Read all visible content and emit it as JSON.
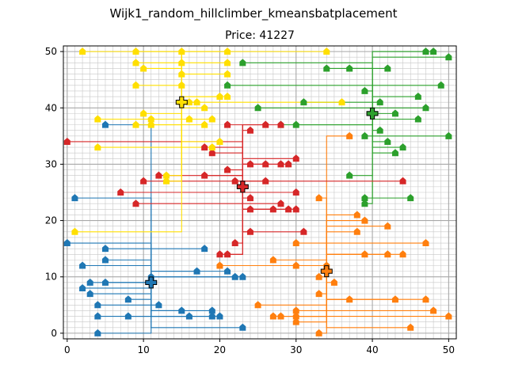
{
  "chart_data": {
    "type": "scatter",
    "suptitle": "Wijk1_random_hillclimber_kmeansbatplacement",
    "title": "Price: 41227",
    "xlabel": "",
    "ylabel": "",
    "xlim": [
      -0.5,
      51
    ],
    "ylim": [
      -1,
      51
    ],
    "xticks": [
      0,
      10,
      20,
      30,
      40,
      50
    ],
    "yticks": [
      0,
      10,
      20,
      30,
      40,
      50
    ],
    "grid": "major and minor, every unit",
    "colors": {
      "blue": "#1f77b4",
      "orange": "#ff7f0e",
      "green": "#2ca02c",
      "red": "#d62728",
      "yellow": "#ffdf00",
      "minor_grid": "#c8c8c8",
      "major_grid": "#a8a8a8"
    },
    "batteries": [
      {
        "x": 11,
        "y": 9,
        "color": "#1f77b4"
      },
      {
        "x": 34,
        "y": 11,
        "color": "#ff7f0e"
      },
      {
        "x": 40,
        "y": 39,
        "color": "#2ca02c"
      },
      {
        "x": 23,
        "y": 26,
        "color": "#d62728"
      },
      {
        "x": 15,
        "y": 41,
        "color": "#ffdf00"
      }
    ],
    "series": [
      {
        "color": "#1f77b4",
        "battery": [
          11,
          9
        ],
        "houses": [
          [
            0,
            16
          ],
          [
            1,
            24
          ],
          [
            2,
            12
          ],
          [
            2,
            8
          ],
          [
            3,
            9
          ],
          [
            3,
            7
          ],
          [
            4,
            5
          ],
          [
            4,
            3
          ],
          [
            4,
            0
          ],
          [
            5,
            15
          ],
          [
            5,
            13
          ],
          [
            5,
            9
          ],
          [
            5,
            37
          ],
          [
            8,
            6
          ],
          [
            8,
            3
          ],
          [
            11,
            10
          ],
          [
            12,
            5
          ],
          [
            15,
            4
          ],
          [
            16,
            3
          ],
          [
            17,
            11
          ],
          [
            18,
            15
          ],
          [
            19,
            4
          ],
          [
            19,
            3
          ],
          [
            20,
            3
          ],
          [
            21,
            11
          ],
          [
            22,
            10
          ],
          [
            23,
            10
          ],
          [
            23,
            1
          ]
        ]
      },
      {
        "color": "#ff7f0e",
        "battery": [
          34,
          11
        ],
        "houses": [
          [
            20,
            12
          ],
          [
            25,
            5
          ],
          [
            27,
            13
          ],
          [
            27,
            3
          ],
          [
            28,
            3
          ],
          [
            30,
            16
          ],
          [
            30,
            12
          ],
          [
            30,
            4
          ],
          [
            30,
            2
          ],
          [
            30,
            3
          ],
          [
            33,
            24
          ],
          [
            33,
            10
          ],
          [
            33,
            7
          ],
          [
            33,
            0
          ],
          [
            34,
            12
          ],
          [
            35,
            9
          ],
          [
            37,
            35
          ],
          [
            37,
            6
          ],
          [
            38,
            21
          ],
          [
            38,
            18
          ],
          [
            39,
            14
          ],
          [
            39,
            20
          ],
          [
            42,
            19
          ],
          [
            42,
            14
          ],
          [
            43,
            6
          ],
          [
            44,
            14
          ],
          [
            45,
            1
          ],
          [
            47,
            16
          ],
          [
            47,
            6
          ],
          [
            48,
            4
          ],
          [
            50,
            3
          ]
        ]
      },
      {
        "color": "#2ca02c",
        "battery": [
          40,
          39
        ],
        "houses": [
          [
            21,
            44
          ],
          [
            23,
            48
          ],
          [
            25,
            40
          ],
          [
            28,
            37
          ],
          [
            30,
            37
          ],
          [
            31,
            41
          ],
          [
            34,
            47
          ],
          [
            37,
            47
          ],
          [
            37,
            28
          ],
          [
            39,
            24
          ],
          [
            39,
            23
          ],
          [
            39,
            43
          ],
          [
            39,
            35
          ],
          [
            41,
            36
          ],
          [
            41,
            41
          ],
          [
            42,
            34
          ],
          [
            42,
            47
          ],
          [
            43,
            39
          ],
          [
            43,
            32
          ],
          [
            44,
            33
          ],
          [
            45,
            24
          ],
          [
            46,
            38
          ],
          [
            46,
            42
          ],
          [
            47,
            40
          ],
          [
            47,
            50
          ],
          [
            48,
            50
          ],
          [
            49,
            44
          ],
          [
            50,
            49
          ],
          [
            50,
            35
          ]
        ]
      },
      {
        "color": "#d62728",
        "battery": [
          23,
          26
        ],
        "houses": [
          [
            0,
            34
          ],
          [
            7,
            25
          ],
          [
            9,
            23
          ],
          [
            10,
            27
          ],
          [
            12,
            28
          ],
          [
            18,
            33
          ],
          [
            18,
            28
          ],
          [
            19,
            32
          ],
          [
            20,
            14
          ],
          [
            21,
            29
          ],
          [
            21,
            37
          ],
          [
            21,
            14
          ],
          [
            22,
            27
          ],
          [
            22,
            16
          ],
          [
            24,
            36
          ],
          [
            24,
            30
          ],
          [
            24,
            24
          ],
          [
            24,
            22
          ],
          [
            24,
            18
          ],
          [
            26,
            37
          ],
          [
            26,
            30
          ],
          [
            26,
            27
          ],
          [
            27,
            22
          ],
          [
            28,
            30
          ],
          [
            28,
            37
          ],
          [
            28,
            23
          ],
          [
            29,
            22
          ],
          [
            29,
            30
          ],
          [
            30,
            31
          ],
          [
            30,
            25
          ],
          [
            31,
            18
          ],
          [
            44,
            27
          ],
          [
            30,
            22
          ]
        ]
      },
      {
        "color": "#ffdf00",
        "battery": [
          15,
          41
        ],
        "houses": [
          [
            1,
            18
          ],
          [
            2,
            50
          ],
          [
            4,
            38
          ],
          [
            4,
            33
          ],
          [
            9,
            50
          ],
          [
            9,
            48
          ],
          [
            9,
            44
          ],
          [
            9,
            37
          ],
          [
            10,
            47
          ],
          [
            10,
            39
          ],
          [
            11,
            38
          ],
          [
            11,
            37
          ],
          [
            13,
            28
          ],
          [
            13,
            27
          ],
          [
            15,
            50
          ],
          [
            15,
            48
          ],
          [
            15,
            46
          ],
          [
            15,
            44
          ],
          [
            15,
            41
          ],
          [
            16,
            41
          ],
          [
            16,
            38
          ],
          [
            17,
            41
          ],
          [
            18,
            40
          ],
          [
            18,
            37
          ],
          [
            19,
            33
          ],
          [
            19,
            38
          ],
          [
            20,
            42
          ],
          [
            20,
            34
          ],
          [
            21,
            50
          ],
          [
            21,
            48
          ],
          [
            21,
            46
          ],
          [
            21,
            42
          ],
          [
            34,
            50
          ],
          [
            36,
            41
          ]
        ]
      }
    ]
  }
}
